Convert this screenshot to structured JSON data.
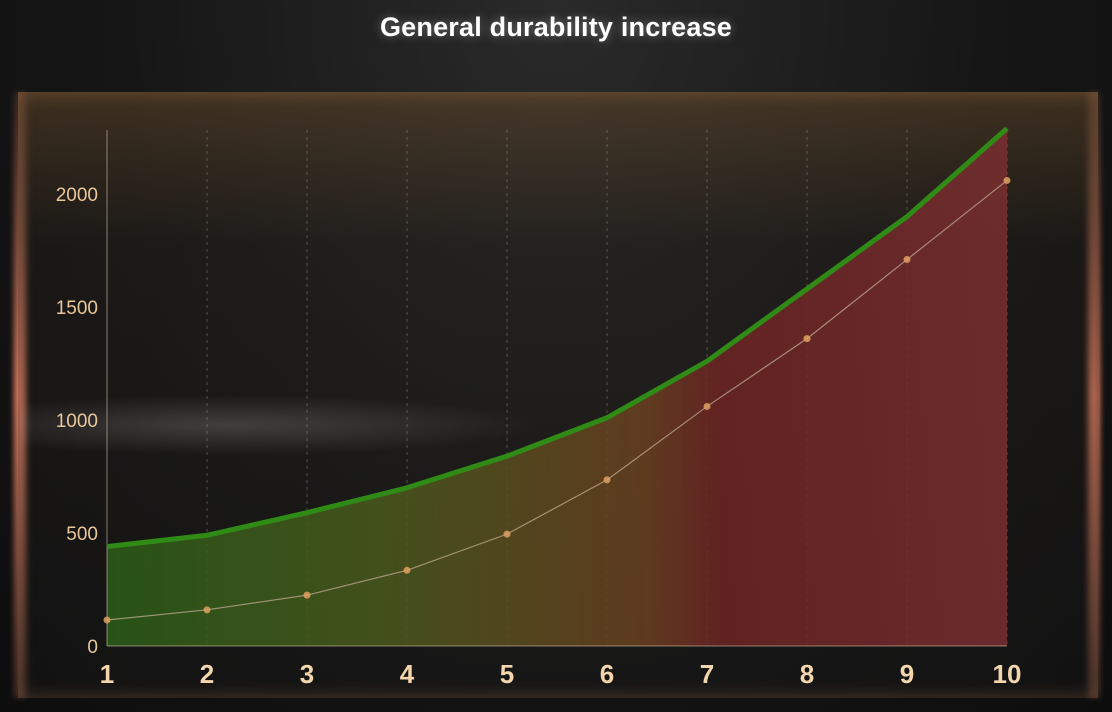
{
  "page": {
    "title": "General durability increase"
  },
  "chart_data": {
    "type": "area",
    "title": "General durability increase",
    "xlabel": "",
    "ylabel": "",
    "x": [
      1,
      2,
      3,
      4,
      5,
      6,
      7,
      8,
      9,
      10
    ],
    "xlim": [
      1,
      10
    ],
    "ylim": [
      0,
      2300
    ],
    "yticks": [
      0,
      500,
      1000,
      1500,
      2000
    ],
    "grid": "vertical dashed",
    "legend": "none",
    "series": [
      {
        "style": "thick-line-with-gradient-fill",
        "color": "#2f8a16",
        "values": [
          440,
          490,
          590,
          700,
          840,
          1010,
          1260,
          1580,
          1900,
          2290
        ]
      },
      {
        "style": "thin-line-with-markers",
        "color": "#b9a58a",
        "marker_color": "#e0a060",
        "values": [
          115,
          160,
          225,
          335,
          495,
          735,
          1060,
          1360,
          1710,
          2060
        ]
      }
    ],
    "fill_gradient": [
      "#2b5e18",
      "#4a5a1c",
      "#6a4020",
      "#6e2424",
      "#7a2e30"
    ]
  }
}
